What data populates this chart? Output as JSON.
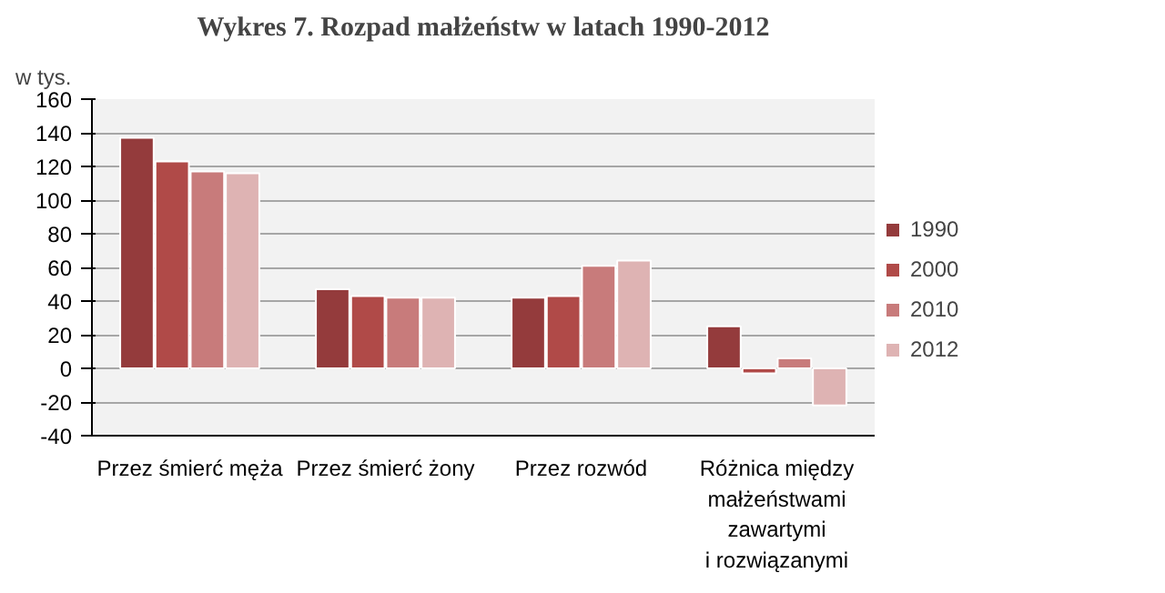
{
  "chart_data": {
    "type": "bar",
    "title": "Wykres 7. Rozpad małżeństw w latach 1990-2012",
    "ylabel": "w tys.",
    "categories": [
      "Przez śmierć męża",
      "Przez śmierć żony",
      "Przez rozwód",
      "Różnica między\nmałżeństwami\nzawartymi\ni rozwiązanymi"
    ],
    "series": [
      {
        "name": "1990",
        "color": "#943b3c",
        "values": [
          137,
          47,
          42,
          25
        ]
      },
      {
        "name": "2000",
        "color": "#b04a48",
        "values": [
          123,
          43,
          43,
          -3
        ]
      },
      {
        "name": "2010",
        "color": "#c87b7b",
        "values": [
          117,
          42,
          61,
          6
        ]
      },
      {
        "name": "2012",
        "color": "#deb3b3",
        "values": [
          116,
          42,
          64,
          -22
        ]
      }
    ],
    "ylim": [
      -40,
      160
    ],
    "yticks": [
      -40,
      -20,
      0,
      20,
      40,
      60,
      80,
      100,
      120,
      140,
      160
    ],
    "grid": "y",
    "legend": "right"
  }
}
